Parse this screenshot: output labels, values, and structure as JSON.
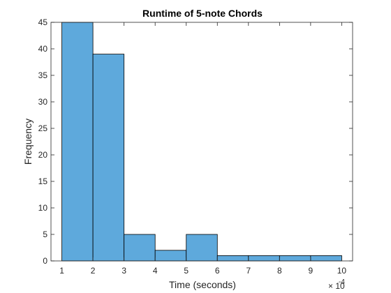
{
  "chart_data": {
    "type": "bar",
    "subtype": "histogram",
    "title": "Runtime of 5-note Chords",
    "xlabel": "Time (seconds)",
    "ylabel": "Frequency",
    "x_exponent_label": "× 10",
    "x_exponent_power": "-4",
    "bin_edges": [
      1,
      2,
      3,
      4,
      5,
      6,
      7,
      8,
      9,
      10
    ],
    "values": [
      45,
      39,
      5,
      2,
      5,
      1,
      1,
      1,
      1
    ],
    "xlim": [
      0.65,
      10.35
    ],
    "ylim": [
      0,
      45
    ],
    "x_ticks": [
      1,
      2,
      3,
      4,
      5,
      6,
      7,
      8,
      9,
      10
    ],
    "y_ticks": [
      0,
      5,
      10,
      15,
      20,
      25,
      30,
      35,
      40,
      45
    ],
    "grid": false,
    "colors": {
      "bar_fill": "#5ea9dc",
      "bar_edge": "#000000",
      "axis": "#262626"
    }
  }
}
